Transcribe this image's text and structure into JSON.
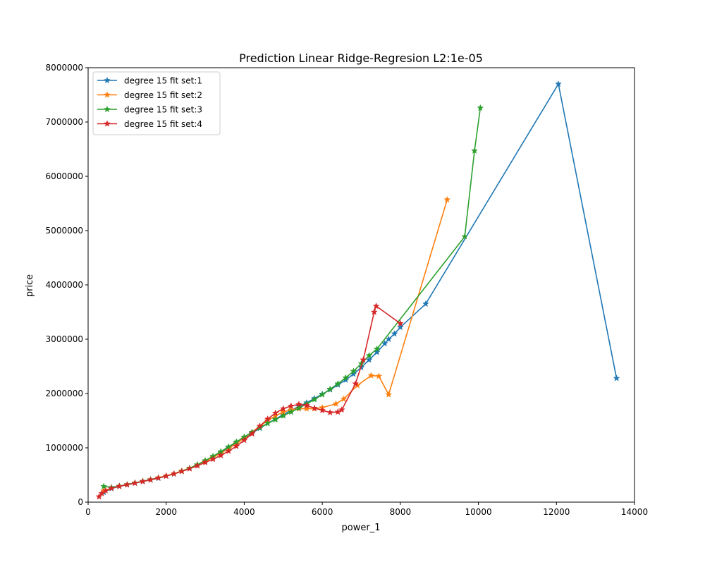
{
  "chart_data": {
    "type": "line",
    "title": "Prediction Linear Ridge-Regresion L2:1e-05",
    "xlabel": "power_1",
    "ylabel": "price",
    "xlim": [
      0,
      14000
    ],
    "ylim": [
      0,
      8000000
    ],
    "xticks": [
      0,
      2000,
      4000,
      6000,
      8000,
      10000,
      12000,
      14000
    ],
    "yticks": [
      0,
      1000000,
      2000000,
      3000000,
      4000000,
      5000000,
      6000000,
      7000000,
      8000000
    ],
    "xtick_labels": [
      "0",
      "2000",
      "4000",
      "6000",
      "8000",
      "10000",
      "12000",
      "14000"
    ],
    "ytick_labels": [
      "0",
      "1000000",
      "2000000",
      "3000000",
      "4000000",
      "5000000",
      "6000000",
      "7000000",
      "8000000"
    ],
    "grid": false,
    "legend_position": "top-left",
    "marker": "star",
    "series": [
      {
        "name": "degree 15 fit set:1",
        "color": "#1f77b4",
        "x": [
          400,
          600,
          800,
          1000,
          1200,
          1400,
          1600,
          1800,
          2000,
          2200,
          2400,
          2600,
          2800,
          3000,
          3200,
          3400,
          3600,
          3800,
          4000,
          4200,
          4400,
          4600,
          4800,
          5000,
          5200,
          5400,
          5600,
          5800,
          6000,
          6200,
          6400,
          6600,
          6800,
          7000,
          7200,
          7400,
          7600,
          7700,
          7850,
          8000,
          8650,
          12050,
          13540
        ],
        "y": [
          180000,
          250000,
          290000,
          320000,
          350000,
          380000,
          410000,
          440000,
          480000,
          520000,
          570000,
          620000,
          680000,
          750000,
          830000,
          910000,
          1000000,
          1100000,
          1180000,
          1270000,
          1360000,
          1450000,
          1530000,
          1610000,
          1690000,
          1760000,
          1830000,
          1910000,
          1990000,
          2070000,
          2160000,
          2250000,
          2360000,
          2480000,
          2620000,
          2760000,
          2920000,
          3000000,
          3100000,
          3220000,
          3650000,
          7700000,
          2280000
        ]
      },
      {
        "name": "degree 15 fit set:2",
        "color": "#ff7f0e",
        "x": [
          400,
          600,
          800,
          1000,
          1200,
          1400,
          1600,
          1800,
          2000,
          2200,
          2400,
          2600,
          2800,
          3000,
          3200,
          3400,
          3600,
          3800,
          4000,
          4200,
          4400,
          4600,
          4800,
          5000,
          5200,
          5400,
          5600,
          5800,
          6000,
          6350,
          6550,
          6900,
          7250,
          7450,
          7700,
          9200
        ],
        "y": [
          210000,
          260000,
          295000,
          325000,
          355000,
          385000,
          415000,
          450000,
          485000,
          525000,
          575000,
          625000,
          685000,
          750000,
          825000,
          900000,
          985000,
          1080000,
          1180000,
          1290000,
          1400000,
          1500000,
          1590000,
          1660000,
          1700000,
          1720000,
          1720000,
          1720000,
          1740000,
          1810000,
          1900000,
          2150000,
          2330000,
          2320000,
          1980000,
          5570000
        ]
      },
      {
        "name": "degree 15 fit set:3",
        "color": "#2ca02c",
        "x": [
          400,
          600,
          800,
          1000,
          1200,
          1400,
          1600,
          1800,
          2000,
          2200,
          2400,
          2600,
          2800,
          3000,
          3200,
          3400,
          3600,
          3800,
          4000,
          4200,
          4400,
          4600,
          4800,
          5000,
          5200,
          5400,
          5600,
          5800,
          6000,
          6200,
          6400,
          6600,
          6800,
          7000,
          7200,
          7400,
          9650,
          9900,
          10050
        ],
        "y": [
          290000,
          270000,
          295000,
          325000,
          355000,
          385000,
          415000,
          445000,
          480000,
          520000,
          570000,
          625000,
          690000,
          765000,
          845000,
          930000,
          1020000,
          1110000,
          1200000,
          1290000,
          1370000,
          1450000,
          1520000,
          1590000,
          1660000,
          1730000,
          1810000,
          1890000,
          1980000,
          2080000,
          2180000,
          2290000,
          2410000,
          2550000,
          2700000,
          2820000,
          4890000,
          6470000,
          7260000
        ]
      },
      {
        "name": "degree 15 fit set:4",
        "color": "#d62728",
        "x": [
          280,
          350,
          450,
          600,
          800,
          1000,
          1200,
          1400,
          1600,
          1800,
          2000,
          2200,
          2400,
          2600,
          2800,
          3000,
          3200,
          3400,
          3600,
          3800,
          4000,
          4200,
          4400,
          4600,
          4800,
          5000,
          5200,
          5400,
          5600,
          5800,
          6000,
          6200,
          6400,
          6500,
          6850,
          7050,
          7330,
          7380,
          8000
        ],
        "y": [
          100000,
          160000,
          210000,
          255000,
          290000,
          320000,
          350000,
          380000,
          410000,
          445000,
          480000,
          520000,
          565000,
          615000,
          670000,
          730000,
          790000,
          860000,
          940000,
          1030000,
          1140000,
          1260000,
          1400000,
          1530000,
          1640000,
          1720000,
          1770000,
          1800000,
          1780000,
          1730000,
          1690000,
          1650000,
          1660000,
          1700000,
          2180000,
          2620000,
          3500000,
          3610000,
          3290000
        ]
      }
    ]
  }
}
